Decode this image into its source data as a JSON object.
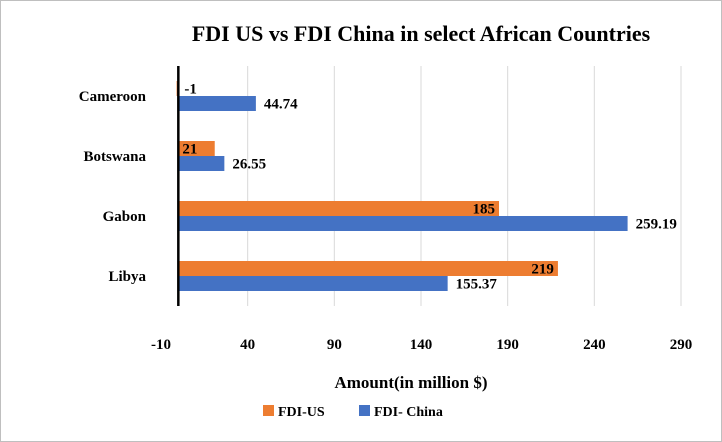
{
  "chart_data": {
    "type": "bar",
    "orientation": "horizontal",
    "title": "FDI US vs FDI China in select African Countries",
    "xlabel": "Amount(in million $)",
    "ylabel": "",
    "categories": [
      "Cameroon",
      "Botswana",
      "Gabon",
      "Libya"
    ],
    "series": [
      {
        "name": "FDI-US",
        "values": [
          -1,
          21,
          185,
          219
        ],
        "color": "#ED7D31"
      },
      {
        "name": "FDI- China",
        "values": [
          44.74,
          26.55,
          259.19,
          155.37
        ],
        "color": "#4472C4"
      }
    ],
    "data_labels": {
      "FDI-US": [
        "-1",
        "21",
        "185",
        "219"
      ],
      "FDI- China": [
        "44.74",
        "26.55",
        "259.19",
        "155.37"
      ]
    },
    "xlim": [
      -10,
      290
    ],
    "xticks": [
      -10,
      40,
      90,
      140,
      190,
      240,
      290
    ],
    "x_tick_labels": [
      "-10",
      "40",
      "90",
      "140",
      "190",
      "240",
      "290"
    ],
    "grid": "vertical",
    "legend": "bottom"
  }
}
